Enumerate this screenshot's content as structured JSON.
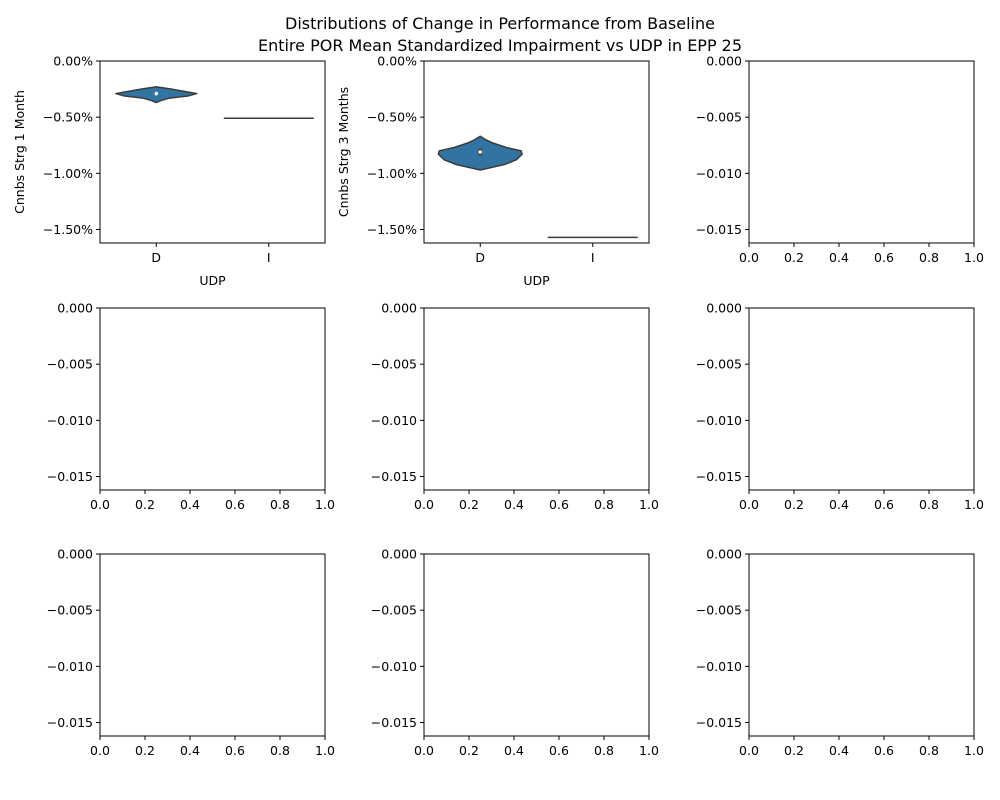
{
  "suptitle_line1": "Distributions of Change in Performance from Baseline",
  "suptitle_line2": "Entire POR Mean Standardized Impairment vs UDP in EPP 25",
  "colors": {
    "violin_fill": "#3274a1",
    "violin_edge": "#3b3b3b",
    "axis": "#000000",
    "median_dot": "#ffffff"
  },
  "chart_data": [
    {
      "type": "violin",
      "panel": 1,
      "xlabel": "UDP",
      "ylabel": "Cnnbs Strg 1 Month",
      "categories": [
        "D",
        "I"
      ],
      "ylim": [
        -0.0162,
        0.0
      ],
      "yticks": [
        0.0,
        -0.005,
        -0.01,
        -0.015
      ],
      "ytick_labels": [
        "0.00%",
        "−0.50%",
        "−1.00%",
        "−1.50%"
      ],
      "series": [
        {
          "category": "D",
          "min": -0.0037,
          "max": -0.0023,
          "median": -0.0029,
          "q1": -0.003,
          "q3": -0.0028,
          "kde": [
            [
              -0.0037,
              0.0
            ],
            [
              -0.0035,
              0.12
            ],
            [
              -0.0033,
              0.3
            ],
            [
              -0.0031,
              0.72
            ],
            [
              -0.0029,
              0.9
            ],
            [
              -0.0027,
              0.62
            ],
            [
              -0.0025,
              0.34
            ],
            [
              -0.0024,
              0.18
            ],
            [
              -0.0023,
              0.0
            ]
          ]
        },
        {
          "category": "I",
          "single_value": -0.0051
        }
      ]
    },
    {
      "type": "violin",
      "panel": 2,
      "xlabel": "UDP",
      "ylabel": "Cnnbs Strg 3 Months",
      "categories": [
        "D",
        "I"
      ],
      "ylim": [
        -0.0162,
        0.0
      ],
      "yticks": [
        0.0,
        -0.005,
        -0.01,
        -0.015
      ],
      "ytick_labels": [
        "0.00%",
        "−0.50%",
        "−1.00%",
        "−1.50%"
      ],
      "series": [
        {
          "category": "D",
          "min": -0.0097,
          "max": -0.0067,
          "median": -0.0081,
          "q1": -0.0084,
          "q3": -0.0078,
          "kde": [
            [
              -0.0097,
              0.0
            ],
            [
              -0.0095,
              0.22
            ],
            [
              -0.0092,
              0.55
            ],
            [
              -0.0088,
              0.8
            ],
            [
              -0.0083,
              0.93
            ],
            [
              -0.008,
              0.91
            ],
            [
              -0.0077,
              0.58
            ],
            [
              -0.0073,
              0.28
            ],
            [
              -0.007,
              0.12
            ],
            [
              -0.0067,
              0.0
            ]
          ]
        },
        {
          "category": "I",
          "single_value": -0.0157
        }
      ]
    },
    {
      "type": "empty",
      "panel": 3,
      "ylim": [
        -0.0162,
        0.0
      ],
      "xlim": [
        0,
        1
      ],
      "yticks": [
        0.0,
        -0.005,
        -0.01,
        -0.015
      ],
      "ytick_labels": [
        "0.000",
        "−0.005",
        "−0.010",
        "−0.015"
      ],
      "xticks": [
        0,
        0.2,
        0.4,
        0.6,
        0.8,
        1.0
      ],
      "xtick_labels": [
        "0.0",
        "0.2",
        "0.4",
        "0.6",
        "0.8",
        "1.0"
      ]
    },
    {
      "type": "empty",
      "panel": 4,
      "ylim": [
        -0.0162,
        0.0
      ],
      "xlim": [
        0,
        1
      ],
      "yticks": [
        0.0,
        -0.005,
        -0.01,
        -0.015
      ],
      "ytick_labels": [
        "0.000",
        "−0.005",
        "−0.010",
        "−0.015"
      ],
      "xticks": [
        0,
        0.2,
        0.4,
        0.6,
        0.8,
        1.0
      ],
      "xtick_labels": [
        "0.0",
        "0.2",
        "0.4",
        "0.6",
        "0.8",
        "1.0"
      ]
    },
    {
      "type": "empty",
      "panel": 5,
      "ylim": [
        -0.0162,
        0.0
      ],
      "xlim": [
        0,
        1
      ],
      "yticks": [
        0.0,
        -0.005,
        -0.01,
        -0.015
      ],
      "ytick_labels": [
        "0.000",
        "−0.005",
        "−0.010",
        "−0.015"
      ],
      "xticks": [
        0,
        0.2,
        0.4,
        0.6,
        0.8,
        1.0
      ],
      "xtick_labels": [
        "0.0",
        "0.2",
        "0.4",
        "0.6",
        "0.8",
        "1.0"
      ]
    },
    {
      "type": "empty",
      "panel": 6,
      "ylim": [
        -0.0162,
        0.0
      ],
      "xlim": [
        0,
        1
      ],
      "yticks": [
        0.0,
        -0.005,
        -0.01,
        -0.015
      ],
      "ytick_labels": [
        "0.000",
        "−0.005",
        "−0.010",
        "−0.015"
      ],
      "xticks": [
        0,
        0.2,
        0.4,
        0.6,
        0.8,
        1.0
      ],
      "xtick_labels": [
        "0.0",
        "0.2",
        "0.4",
        "0.6",
        "0.8",
        "1.0"
      ]
    },
    {
      "type": "empty",
      "panel": 7,
      "ylim": [
        -0.0162,
        0.0
      ],
      "xlim": [
        0,
        1
      ],
      "yticks": [
        0.0,
        -0.005,
        -0.01,
        -0.015
      ],
      "ytick_labels": [
        "0.000",
        "−0.005",
        "−0.010",
        "−0.015"
      ],
      "xticks": [
        0,
        0.2,
        0.4,
        0.6,
        0.8,
        1.0
      ],
      "xtick_labels": [
        "0.0",
        "0.2",
        "0.4",
        "0.6",
        "0.8",
        "1.0"
      ]
    },
    {
      "type": "empty",
      "panel": 8,
      "ylim": [
        -0.0162,
        0.0
      ],
      "xlim": [
        0,
        1
      ],
      "yticks": [
        0.0,
        -0.005,
        -0.01,
        -0.015
      ],
      "ytick_labels": [
        "0.000",
        "−0.005",
        "−0.010",
        "−0.015"
      ],
      "xticks": [
        0,
        0.2,
        0.4,
        0.6,
        0.8,
        1.0
      ],
      "xtick_labels": [
        "0.0",
        "0.2",
        "0.4",
        "0.6",
        "0.8",
        "1.0"
      ]
    },
    {
      "type": "empty",
      "panel": 9,
      "ylim": [
        -0.0162,
        0.0
      ],
      "xlim": [
        0,
        1
      ],
      "yticks": [
        0.0,
        -0.005,
        -0.01,
        -0.015
      ],
      "ytick_labels": [
        "0.000",
        "−0.005",
        "−0.010",
        "−0.015"
      ],
      "xticks": [
        0,
        0.2,
        0.4,
        0.6,
        0.8,
        1.0
      ],
      "xtick_labels": [
        "0.0",
        "0.2",
        "0.4",
        "0.6",
        "0.8",
        "1.0"
      ]
    }
  ]
}
